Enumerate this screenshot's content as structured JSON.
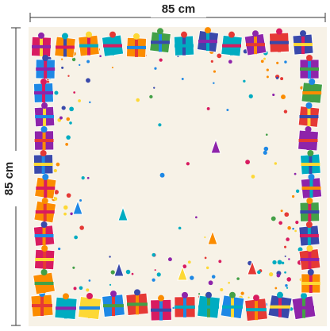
{
  "dimensions": {
    "width_label": "85 cm",
    "height_label": "85 cm"
  }
}
